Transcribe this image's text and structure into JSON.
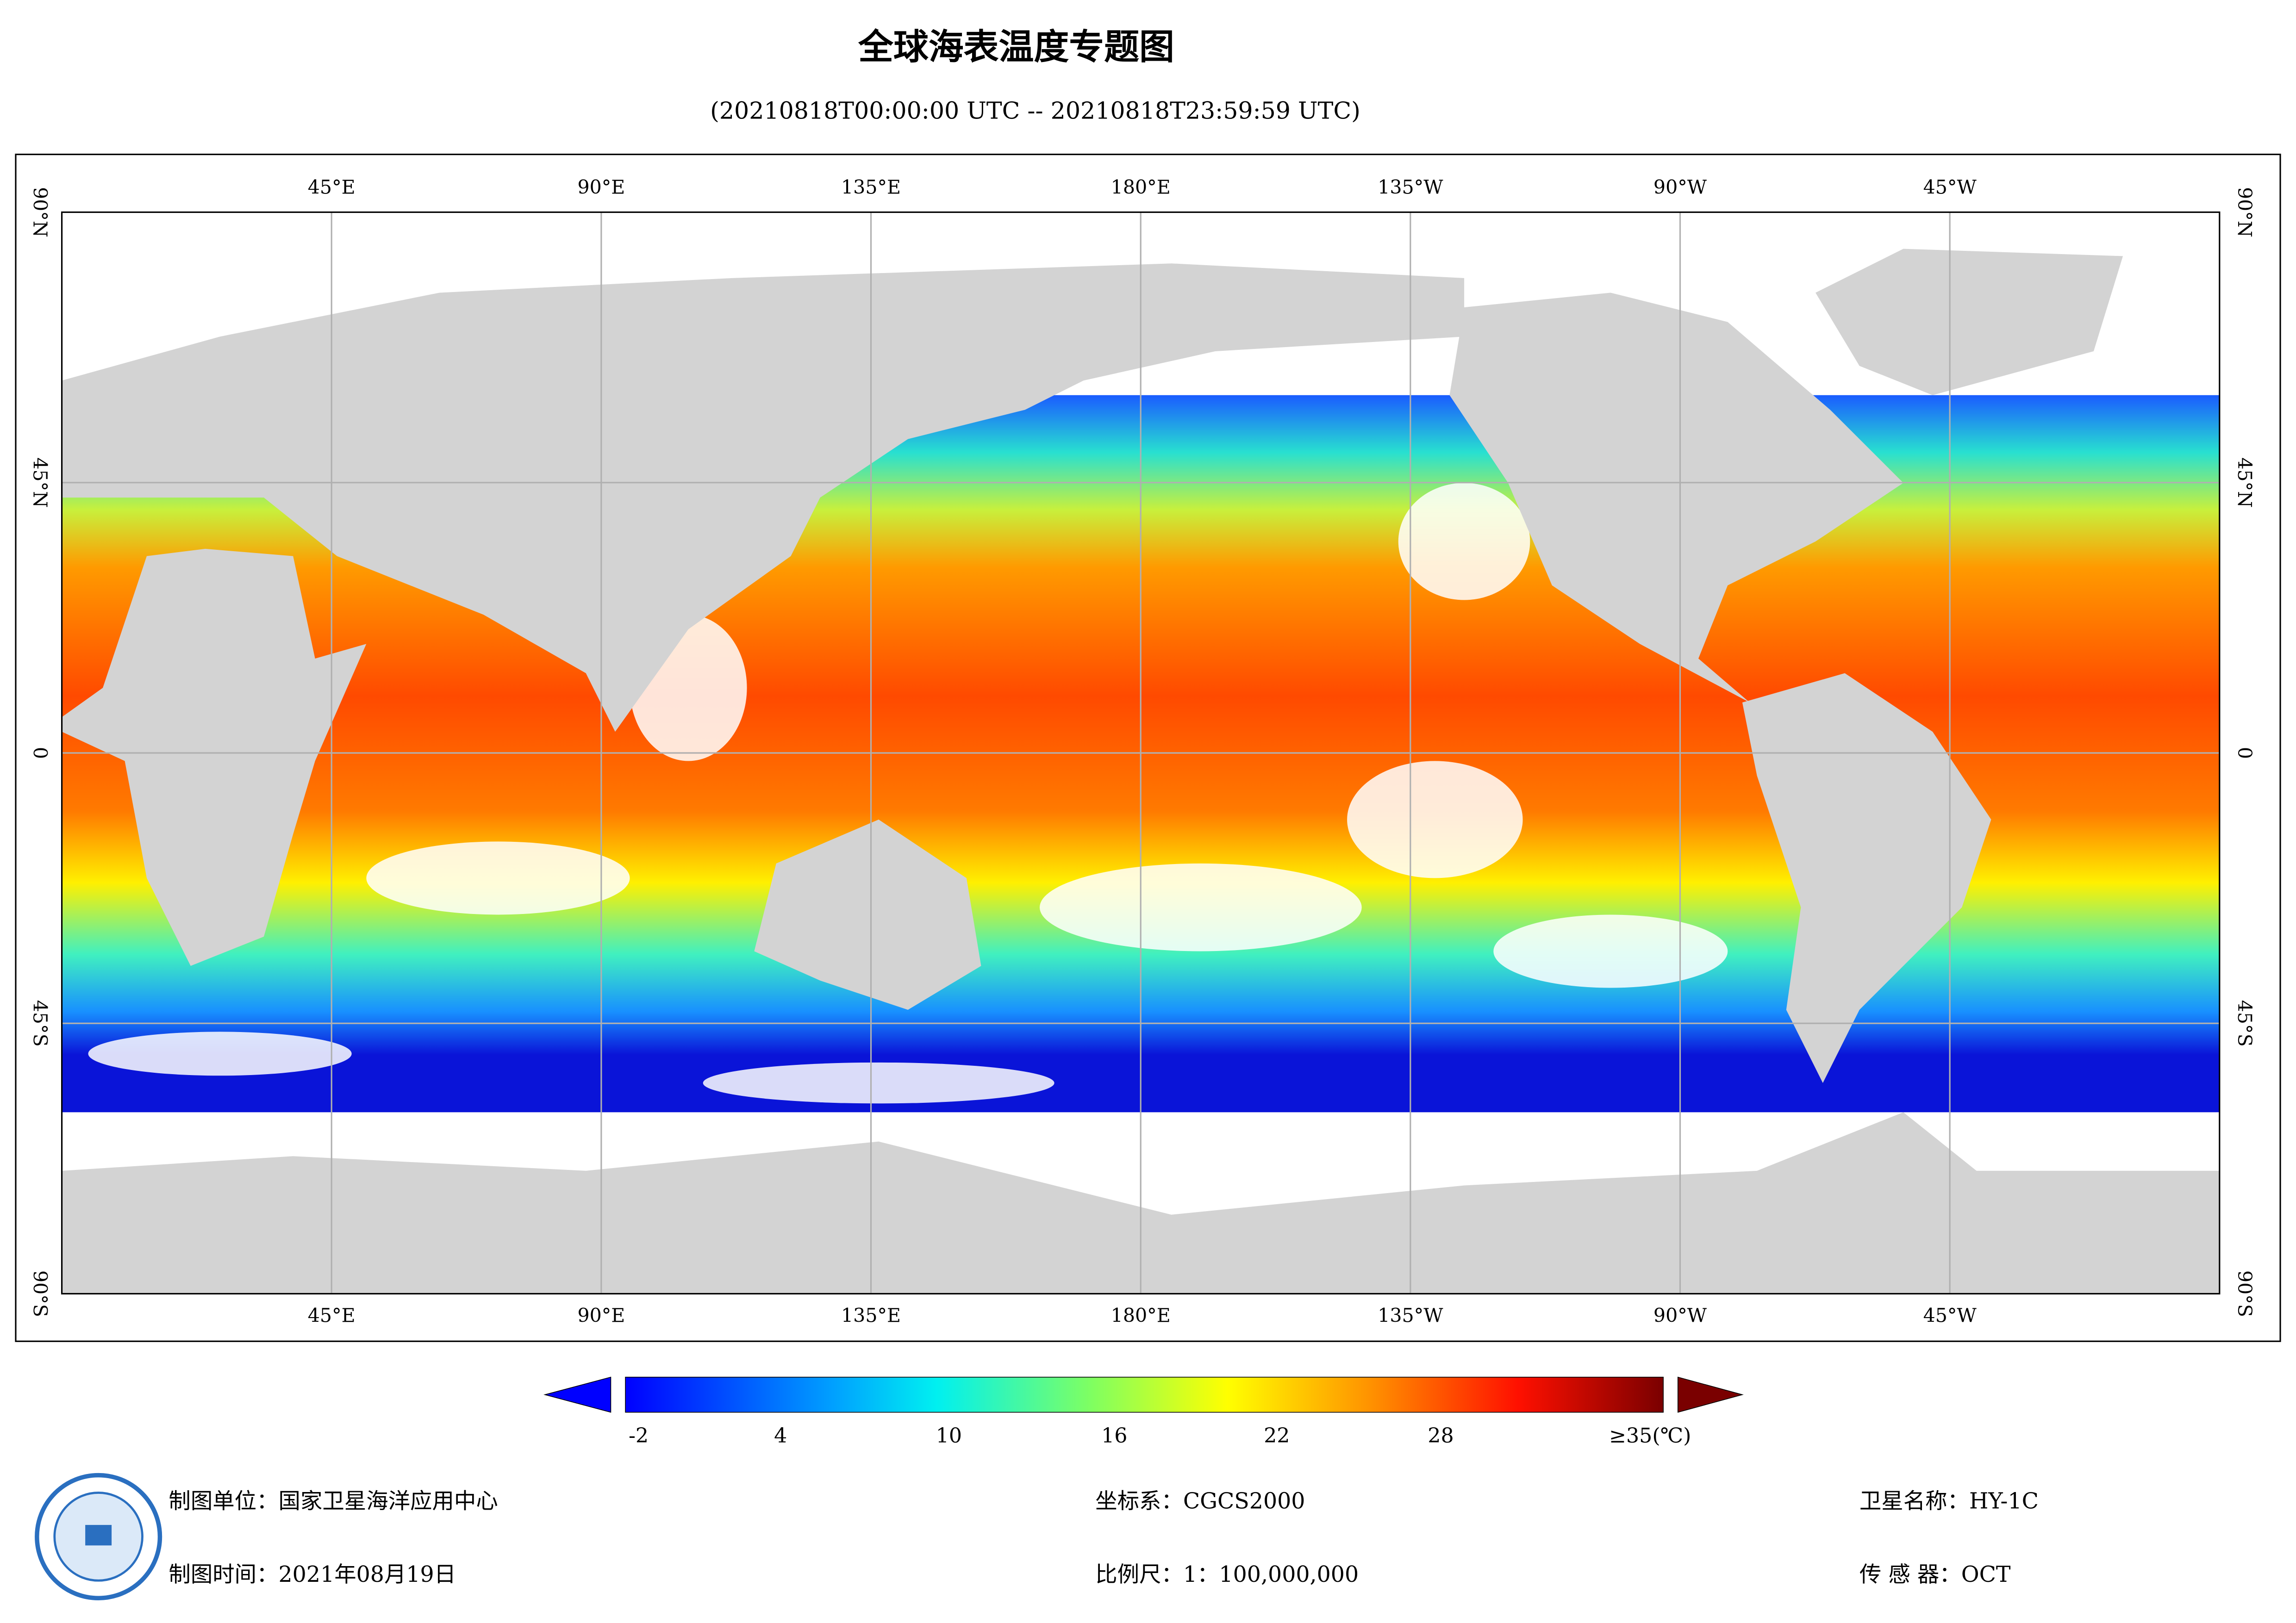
{
  "title": "全球海表温度专题图",
  "subtitle": "(20210818T00:00:00 UTC -- 20210818T23:59:59 UTC)",
  "map": {
    "longitude_labels": [
      "45°E",
      "90°E",
      "135°E",
      "180°E",
      "135°W",
      "90°W",
      "45°W"
    ],
    "latitude_labels": [
      "90°N",
      "45°N",
      "0",
      "45°S",
      "90°S"
    ]
  },
  "colorbar": {
    "labels": [
      "-2",
      "4",
      "10",
      "16",
      "22",
      "28",
      "≥35(℃)"
    ]
  },
  "footer": {
    "producer": "制图单位：国家卫星海洋应用中心",
    "date": "制图时间：2021年08月19日",
    "coordinate_system": "坐标系：CGCS2000",
    "scale": "比例尺：1：100,000,000",
    "satellite": "卫星名称：HY-1C",
    "sensor": "传 感 器：OCT"
  }
}
